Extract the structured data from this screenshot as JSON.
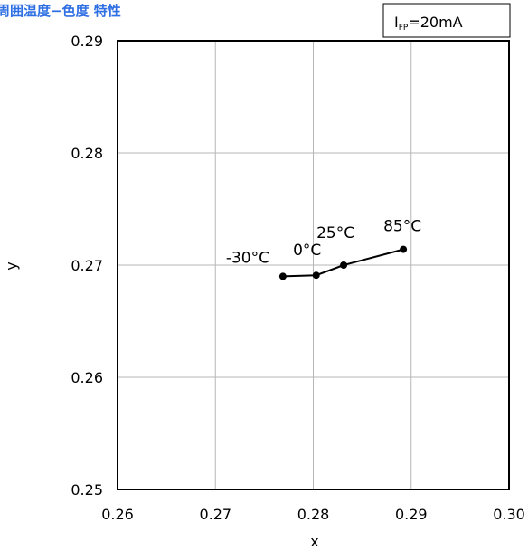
{
  "chart_data": {
    "type": "line",
    "title": "周囲温度−色度 特性",
    "xlabel": "x",
    "ylabel": "y",
    "xlim": [
      0.26,
      0.3
    ],
    "ylim": [
      0.25,
      0.29
    ],
    "x_ticks": [
      "0.26",
      "0.27",
      "0.28",
      "0.29",
      "0.30"
    ],
    "y_ticks": [
      "0.29",
      "0.28",
      "0.27",
      "0.26",
      "0.25"
    ],
    "x_tick_values": [
      0.26,
      0.27,
      0.28,
      0.29,
      0.3
    ],
    "y_tick_values": [
      0.29,
      0.28,
      0.27,
      0.26,
      0.25
    ],
    "grid": true,
    "series": [
      {
        "x": [
          0.2769,
          0.2803,
          0.2831,
          0.2892
        ],
        "y": [
          0.269,
          0.2691,
          0.27,
          0.2714
        ],
        "labels": [
          "-30°C",
          "0°C",
          "25°C",
          "85°C"
        ],
        "color": "#000000"
      }
    ],
    "legend": {
      "placement": "top-right",
      "symbol": "I",
      "subscript": "FP",
      "text": "=20mA"
    }
  }
}
